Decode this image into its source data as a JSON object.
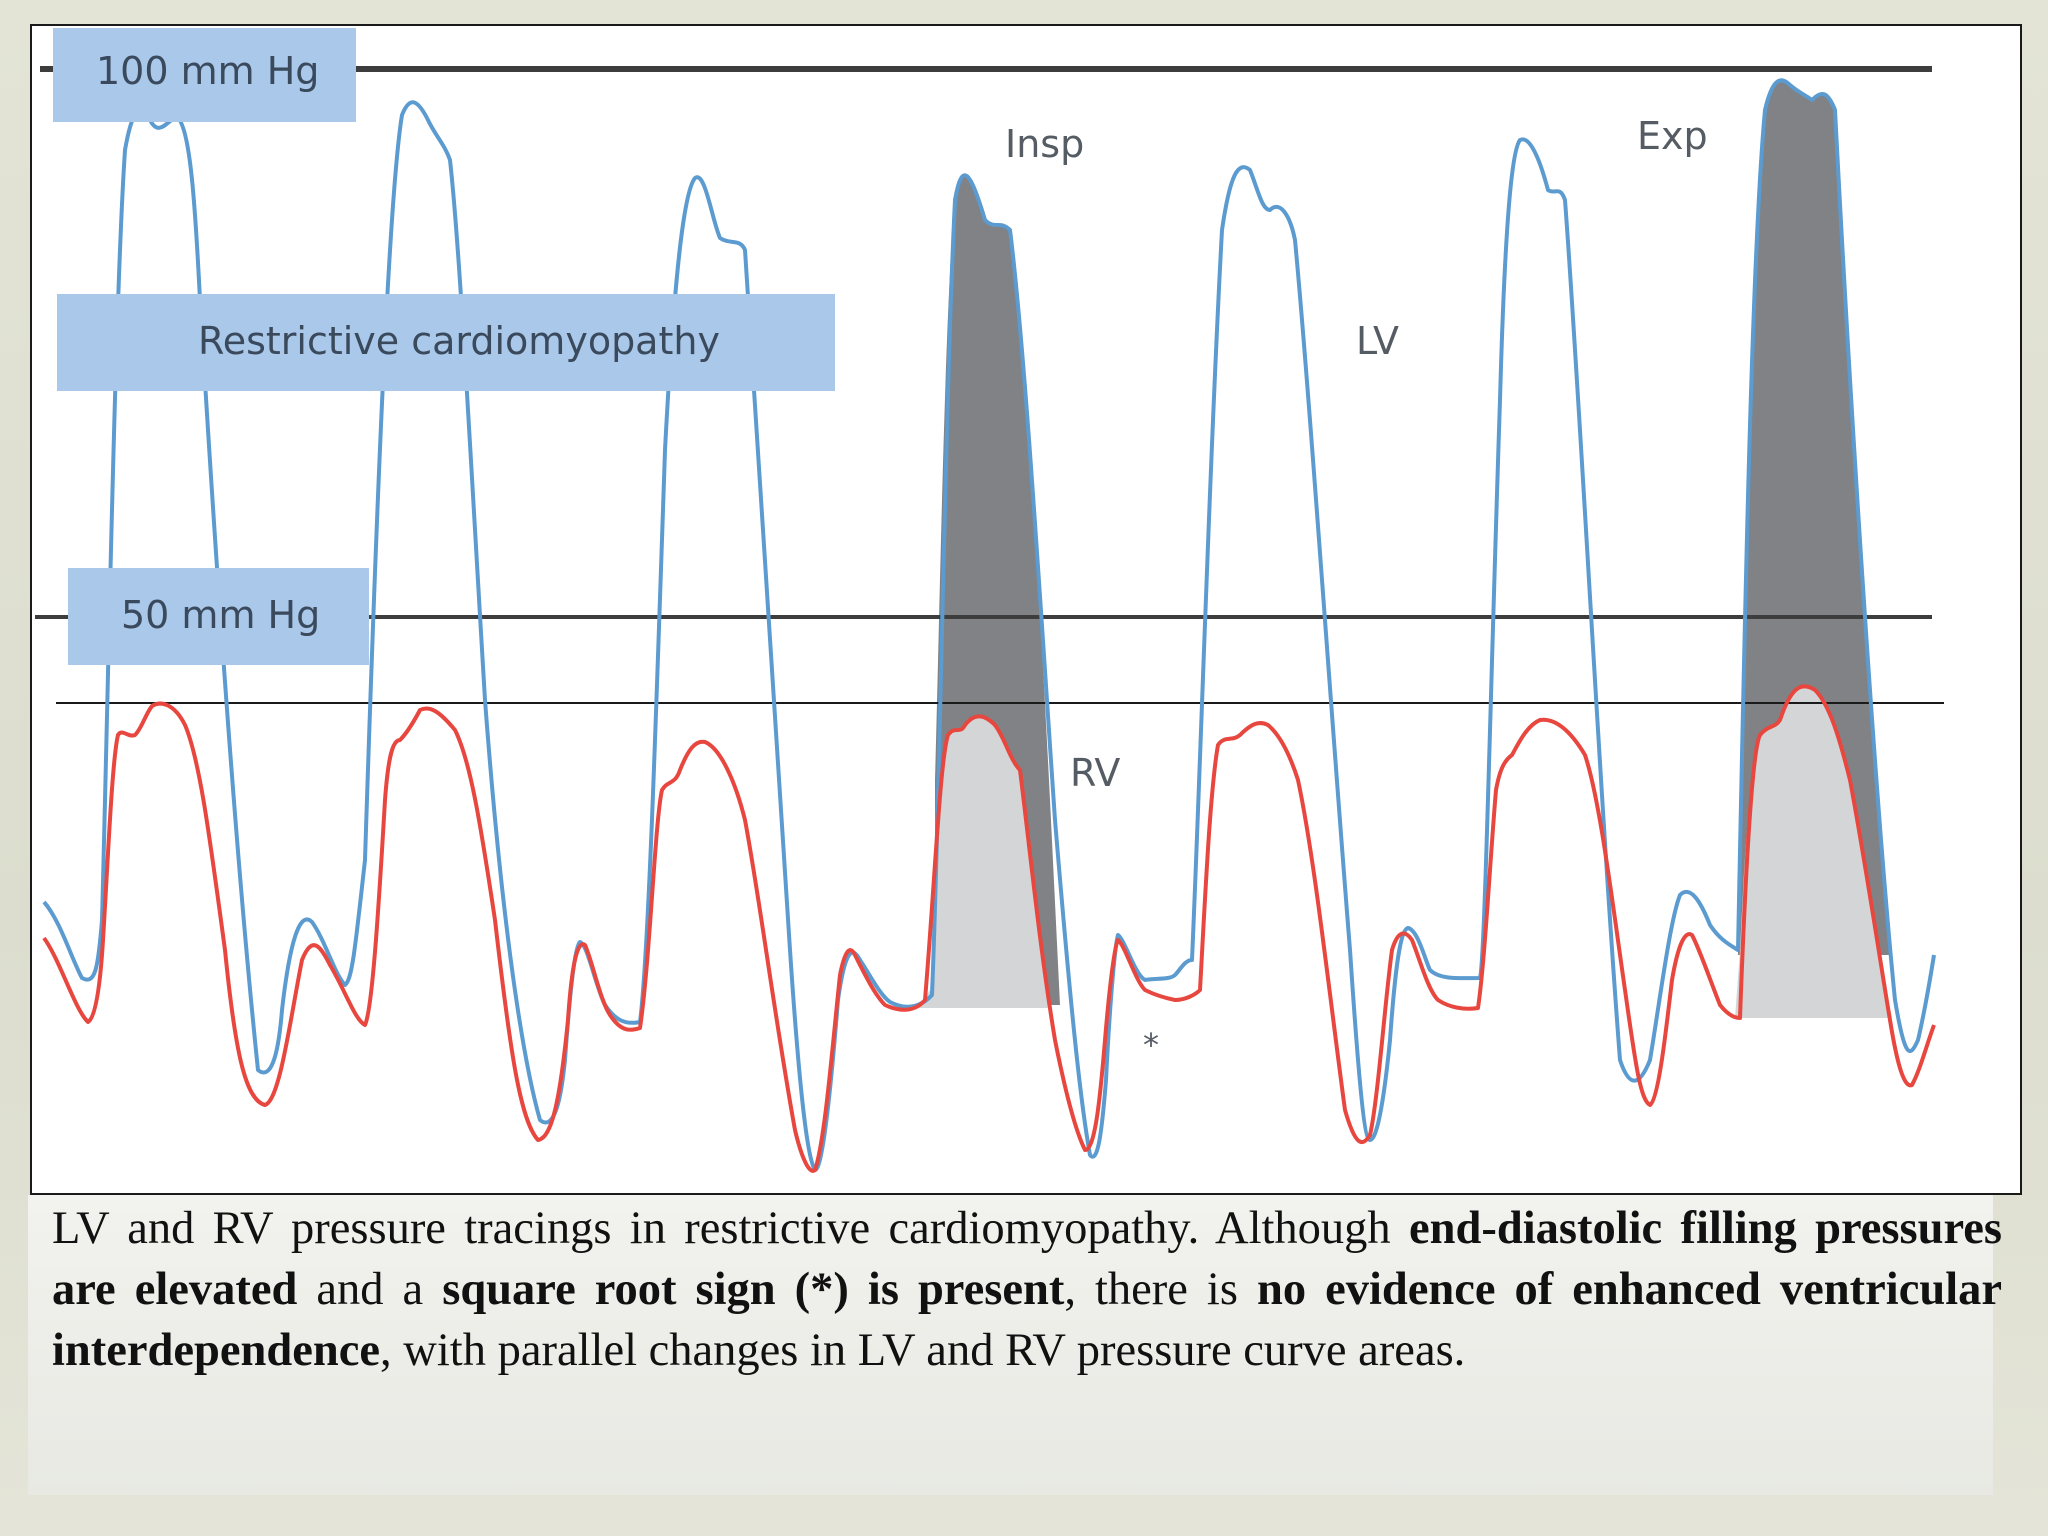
{
  "figure": {
    "labels": {
      "top_reference": "100 mm Hg",
      "mid_reference": "50 mm Hg",
      "condition": "Restrictive cardiomyopathy",
      "inspiration": "Insp",
      "expiration": "Exp",
      "lv": "LV",
      "rv": "RV",
      "square_root_marker": "*"
    },
    "colors": {
      "lv_trace": "#5b9bd0",
      "rv_trace": "#e8473f",
      "lv_area_fill": "#808285",
      "rv_area_fill": "#d4d5d7",
      "label_box": "#a9c8ea",
      "reference_line": "#3d3d3d"
    }
  },
  "caption": {
    "part1": "LV and RV pressure tracings in restrictive cardiomyopathy. Although ",
    "bold1": "end-diastolic filling pressures are elevated",
    "part2": " and a ",
    "bold2": "square root sign (*) is present",
    "part3": ", there is ",
    "bold3": "no evidence of enhanced ventricular interdependence",
    "part4": ", with parallel changes in LV and RV pressure curve areas."
  }
}
